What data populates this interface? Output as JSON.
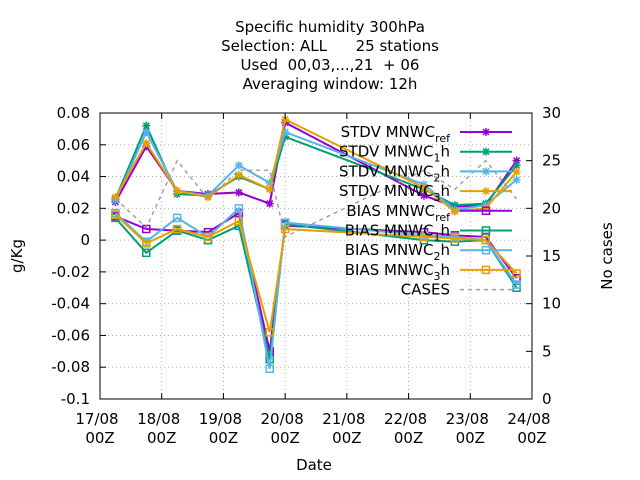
{
  "chart_data": {
    "type": "line",
    "title_lines": [
      "Specific humidity 300hPa",
      "Selection: ALL      25 stations",
      "Used  00,03,...,21  + 06",
      "Averaging window: 12h"
    ],
    "xlabel": "Date",
    "ylabel": "g/Kg",
    "y2label": "No cases",
    "x_ticks": [
      {
        "x": 0,
        "line1": "17/08",
        "line2": "00Z"
      },
      {
        "x": 1,
        "line1": "18/08",
        "line2": "00Z"
      },
      {
        "x": 2,
        "line1": "19/08",
        "line2": "00Z"
      },
      {
        "x": 3,
        "line1": "20/08",
        "line2": "00Z"
      },
      {
        "x": 4,
        "line1": "21/08",
        "line2": "00Z"
      },
      {
        "x": 5,
        "line1": "22/08",
        "line2": "00Z"
      },
      {
        "x": 6,
        "line1": "23/08",
        "line2": "00Z"
      },
      {
        "x": 7,
        "line1": "24/08",
        "line2": "00Z"
      }
    ],
    "xlim": [
      0,
      7
    ],
    "ylim": [
      -0.1,
      0.08
    ],
    "y_ticks": [
      {
        "value": -0.1,
        "label": "-0.1"
      },
      {
        "value": -0.08,
        "label": "-0.08"
      },
      {
        "value": -0.06,
        "label": "-0.06"
      },
      {
        "value": -0.04,
        "label": "-0.04"
      },
      {
        "value": -0.02,
        "label": "-0.02"
      },
      {
        "value": 0,
        "label": "0"
      },
      {
        "value": 0.02,
        "label": "0.02"
      },
      {
        "value": 0.04,
        "label": "0.04"
      },
      {
        "value": 0.06,
        "label": "0.06"
      },
      {
        "value": 0.08,
        "label": "0.08"
      }
    ],
    "y2lim": [
      0,
      30
    ],
    "y2_ticks": [
      {
        "value": 0,
        "label": "0"
      },
      {
        "value": 5,
        "label": "5"
      },
      {
        "value": 10,
        "label": "10"
      },
      {
        "value": 15,
        "label": "15"
      },
      {
        "value": 20,
        "label": "20"
      },
      {
        "value": 25,
        "label": "25"
      },
      {
        "value": 30,
        "label": "30"
      }
    ],
    "grid": true,
    "legend_position": "top-right",
    "series": [
      {
        "key": "stdv_ref",
        "name_main": "STDV MNWC",
        "name_sub": "ref",
        "name_tail": "",
        "color": "#9400d3",
        "marker": "star",
        "axis": "y1",
        "x": [
          0.25,
          0.75,
          1.25,
          1.75,
          2.25,
          2.75,
          3.0,
          5.25,
          5.75,
          6.25,
          6.75
        ],
        "y": [
          0.024,
          0.059,
          0.031,
          0.029,
          0.03,
          0.023,
          0.074,
          0.028,
          0.021,
          0.022,
          0.05
        ]
      },
      {
        "key": "stdv_1h",
        "name_main": "STDV MNWC",
        "name_sub": "1",
        "name_tail": "h",
        "color": "#009e73",
        "marker": "star",
        "axis": "y1",
        "x": [
          0.25,
          0.75,
          1.25,
          1.75,
          2.25,
          2.75,
          3.0,
          5.25,
          5.75,
          6.25,
          6.75
        ],
        "y": [
          0.026,
          0.072,
          0.029,
          0.028,
          0.04,
          0.032,
          0.065,
          0.032,
          0.022,
          0.023,
          0.047
        ]
      },
      {
        "key": "stdv_2h",
        "name_main": "STDV MNWC",
        "name_sub": "2",
        "name_tail": "h",
        "color": "#56b4e9",
        "marker": "star",
        "axis": "y1",
        "x": [
          0.25,
          0.75,
          1.25,
          1.75,
          2.25,
          2.75,
          3.0,
          5.25,
          5.75,
          6.25,
          6.75
        ],
        "y": [
          0.025,
          0.068,
          0.031,
          0.028,
          0.047,
          0.036,
          0.068,
          0.035,
          0.019,
          0.022,
          0.038
        ]
      },
      {
        "key": "stdv_3h",
        "name_main": "STDV MNWC",
        "name_sub": "3",
        "name_tail": "h",
        "color": "#e69f00",
        "marker": "star",
        "axis": "y1",
        "x": [
          0.25,
          0.75,
          1.25,
          1.75,
          2.25,
          2.75,
          3.0,
          5.25,
          5.75,
          6.25,
          6.75
        ],
        "y": [
          0.027,
          0.061,
          0.031,
          0.027,
          0.041,
          0.032,
          0.076,
          0.033,
          0.018,
          0.02,
          0.043
        ]
      },
      {
        "key": "bias_ref",
        "name_main": "BIAS MNWC",
        "name_sub": "ref",
        "name_tail": "",
        "color": "#9400d3",
        "marker": "square",
        "axis": "y1",
        "x": [
          0.25,
          0.75,
          1.25,
          1.75,
          2.25,
          2.75,
          3.0,
          5.25,
          5.75,
          6.25,
          6.75
        ],
        "y": [
          0.015,
          0.007,
          0.006,
          0.005,
          0.017,
          -0.07,
          0.009,
          0.005,
          0.003,
          0.002,
          -0.024
        ]
      },
      {
        "key": "bias_1h",
        "name_main": "BIAS MNWC",
        "name_sub": "1",
        "name_tail": "h",
        "color": "#009e73",
        "marker": "square",
        "axis": "y1",
        "x": [
          0.25,
          0.75,
          1.25,
          1.75,
          2.25,
          2.75,
          3.0,
          5.25,
          5.75,
          6.25,
          6.75
        ],
        "y": [
          0.014,
          -0.008,
          0.006,
          0.0,
          0.009,
          -0.075,
          0.01,
          0.0,
          -0.001,
          0.0,
          -0.03
        ]
      },
      {
        "key": "bias_2h",
        "name_main": "BIAS MNWC",
        "name_sub": "2",
        "name_tail": "h",
        "color": "#56b4e9",
        "marker": "square",
        "axis": "y1",
        "x": [
          0.25,
          0.75,
          1.25,
          1.75,
          2.25,
          2.75,
          3.0,
          5.25,
          5.75,
          6.25,
          6.75
        ],
        "y": [
          0.017,
          -0.001,
          0.014,
          0.002,
          0.02,
          -0.081,
          0.011,
          0.003,
          0.002,
          0.0,
          -0.028
        ]
      },
      {
        "key": "bias_3h",
        "name_main": "BIAS MNWC",
        "name_sub": "3",
        "name_tail": "h",
        "color": "#e69f00",
        "marker": "square",
        "axis": "y1",
        "x": [
          0.25,
          0.75,
          1.25,
          1.75,
          2.25,
          2.75,
          3.0,
          5.25,
          5.75,
          6.25,
          6.75
        ],
        "y": [
          0.016,
          -0.002,
          0.007,
          0.002,
          0.012,
          -0.058,
          0.007,
          0.002,
          0.001,
          0.0,
          -0.021
        ]
      },
      {
        "key": "cases",
        "name_main": "CASES",
        "name_sub": "",
        "name_tail": "",
        "color": "#a0a0a0",
        "marker": "none",
        "dashed": true,
        "axis": "y2",
        "x": [
          0.25,
          0.75,
          1.25,
          1.75,
          2.25,
          2.75,
          3.0,
          5.25,
          5.75,
          6.25,
          6.75
        ],
        "y": [
          21,
          18,
          25,
          21,
          24,
          24,
          17,
          24,
          22,
          25,
          21
        ]
      }
    ]
  }
}
